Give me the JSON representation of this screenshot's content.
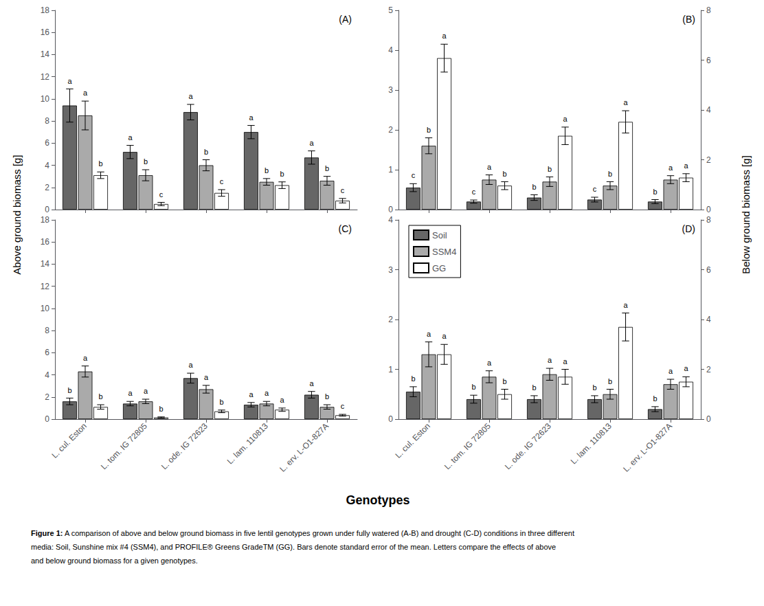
{
  "chart_data": [
    {
      "type": "bar",
      "title": "(A)",
      "categories": [
        "L. cul. Eston",
        "L. tom. IG 72805",
        "L. ode. IG 72623",
        "L. lam. 110813",
        "L. erv. L-O1-827A"
      ],
      "series": [
        {
          "name": "Soil",
          "color": "#666666",
          "values": [
            9.4,
            5.2,
            8.8,
            7.0,
            4.7
          ],
          "errors": [
            1.5,
            0.6,
            0.7,
            0.6,
            0.6
          ],
          "letters": [
            "a",
            "a",
            "a",
            "a",
            "a"
          ]
        },
        {
          "name": "SSM4",
          "color": "#aaaaaa",
          "values": [
            8.5,
            3.1,
            4.0,
            2.5,
            2.6
          ],
          "errors": [
            1.3,
            0.5,
            0.5,
            0.3,
            0.4
          ],
          "letters": [
            "a",
            "b",
            "b",
            "b",
            "b"
          ]
        },
        {
          "name": "GG",
          "color": "#ffffff",
          "values": [
            3.1,
            0.5,
            1.5,
            2.2,
            0.8
          ],
          "errors": [
            0.3,
            0.15,
            0.3,
            0.3,
            0.2
          ],
          "letters": [
            "b",
            "c",
            "c",
            "b",
            "c"
          ]
        }
      ],
      "ylim": [
        0,
        18
      ],
      "yticks": [
        0,
        2,
        4,
        6,
        8,
        10,
        12,
        14,
        16,
        18
      ],
      "grid": false,
      "tick_labels": "y",
      "legend": false
    },
    {
      "type": "bar",
      "title": "(B)",
      "categories": [
        "L. cul. Eston",
        "L. tom. IG 72805",
        "L. ode. IG 72623",
        "L. lam. 110813",
        "L. erv. L-O1-827A"
      ],
      "series": [
        {
          "name": "Soil",
          "color": "#666666",
          "values": [
            0.55,
            0.2,
            0.3,
            0.25,
            0.2
          ],
          "errors": [
            0.1,
            0.04,
            0.07,
            0.06,
            0.05
          ],
          "letters": [
            "c",
            "c",
            "b",
            "c",
            "b"
          ]
        },
        {
          "name": "SSM4",
          "color": "#aaaaaa",
          "values": [
            1.6,
            0.75,
            0.7,
            0.6,
            0.75
          ],
          "errors": [
            0.2,
            0.12,
            0.12,
            0.1,
            0.1
          ],
          "letters": [
            "b",
            "a",
            "b",
            "b",
            "a"
          ]
        },
        {
          "name": "GG",
          "color": "#ffffff",
          "values": [
            3.8,
            0.6,
            1.85,
            2.2,
            0.8
          ],
          "errors": [
            0.35,
            0.1,
            0.22,
            0.28,
            0.1
          ],
          "letters": [
            "a",
            "b",
            "a",
            "a",
            "a"
          ]
        }
      ],
      "ylim": [
        0,
        5
      ],
      "yticks": [
        0,
        1,
        2,
        3,
        4,
        5
      ],
      "y2lim": [
        0,
        8
      ],
      "y2ticks": [
        0,
        2,
        4,
        6,
        8
      ],
      "grid": false,
      "tick_labels": "y",
      "legend": false
    },
    {
      "type": "bar",
      "title": "(C)",
      "categories": [
        "L. cul. Eston",
        "L. tom. IG 72805",
        "L. ode. IG 72623",
        "L. lam. 110813",
        "L. erv. L-O1-827A"
      ],
      "series": [
        {
          "name": "Soil",
          "color": "#666666",
          "values": [
            1.6,
            1.4,
            3.7,
            1.3,
            2.2
          ],
          "errors": [
            0.3,
            0.2,
            0.45,
            0.2,
            0.3
          ],
          "letters": [
            "b",
            "a",
            "a",
            "a",
            "a"
          ]
        },
        {
          "name": "SSM4",
          "color": "#aaaaaa",
          "values": [
            4.3,
            1.6,
            2.7,
            1.4,
            1.1
          ],
          "errors": [
            0.5,
            0.2,
            0.35,
            0.2,
            0.2
          ],
          "letters": [
            "a",
            "a",
            "a",
            "a",
            "b"
          ]
        },
        {
          "name": "GG",
          "color": "#ffffff",
          "values": [
            1.1,
            0.15,
            0.7,
            0.85,
            0.35
          ],
          "errors": [
            0.2,
            0.05,
            0.12,
            0.15,
            0.08
          ],
          "letters": [
            "b",
            "b",
            "b",
            "a",
            "c"
          ]
        }
      ],
      "ylim": [
        0,
        18
      ],
      "yticks": [
        0,
        2,
        4,
        6,
        8,
        10,
        12,
        14,
        16,
        18
      ],
      "grid": false,
      "legend": false
    },
    {
      "type": "bar",
      "title": "(D)",
      "categories": [
        "L. cul. Eston",
        "L. tom. IG 72805",
        "L. ode. IG 72623",
        "L. lam. 110813",
        "L. erv. L-O1-827A"
      ],
      "series": [
        {
          "name": "Soil",
          "color": "#666666",
          "values": [
            0.55,
            0.4,
            0.4,
            0.4,
            0.2
          ],
          "errors": [
            0.1,
            0.08,
            0.07,
            0.07,
            0.05
          ],
          "letters": [
            "b",
            "b",
            "b",
            "b",
            "b"
          ]
        },
        {
          "name": "SSM4",
          "color": "#aaaaaa",
          "values": [
            1.3,
            0.85,
            0.9,
            0.5,
            0.7
          ],
          "errors": [
            0.25,
            0.12,
            0.12,
            0.1,
            0.1
          ],
          "letters": [
            "a",
            "a",
            "a",
            "b",
            "a"
          ]
        },
        {
          "name": "GG",
          "color": "#ffffff",
          "values": [
            1.3,
            0.5,
            0.85,
            1.85,
            0.75
          ],
          "errors": [
            0.2,
            0.1,
            0.15,
            0.28,
            0.1
          ],
          "letters": [
            "a",
            "b",
            "a",
            "a",
            "a"
          ]
        }
      ],
      "ylim": [
        0,
        4
      ],
      "yticks": [
        0,
        1,
        2,
        3,
        4
      ],
      "y2lim": [
        0,
        8
      ],
      "y2ticks": [
        0,
        2,
        4,
        6,
        8
      ],
      "grid": false,
      "legend": "upper left"
    }
  ],
  "ylabel": "Above ground biomass [g]",
  "y2label": "Below ground biomass [g]",
  "xlabel": "Genotypes",
  "caption": [
    "Figure 1: A comparison of above and below ground biomass in five lentil genotypes grown under fully watered (A-B) and drought (C-D) conditions in three different",
    "media: Soil, Sunshine mix #4 (SSM4), and PROFILE® Greens GradeTM (GG). Bars denote standard error of the mean. Letters compare the effects of above",
    "and below ground biomass for a given genotypes."
  ]
}
